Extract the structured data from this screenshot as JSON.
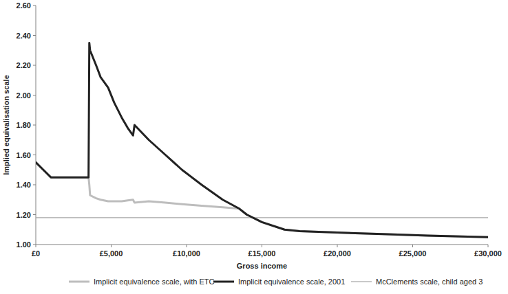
{
  "chart_data": {
    "type": "line",
    "x_label": "Gross income",
    "y_label": "Implied equivalisation scale",
    "x": [
      0,
      500,
      1000,
      2000,
      3500,
      3550,
      3600,
      4000,
      4300,
      4800,
      5200,
      5700,
      6100,
      6450,
      6550,
      7500,
      8600,
      9700,
      11000,
      12400,
      13500,
      14000,
      15000,
      16500,
      17500,
      20000,
      23000,
      26000,
      30000
    ],
    "xlim": [
      0,
      30000
    ],
    "xticks": [
      {
        "value": 0,
        "label": "£0"
      },
      {
        "value": 5000,
        "label": "£5,000"
      },
      {
        "value": 10000,
        "label": "£10,000"
      },
      {
        "value": 15000,
        "label": "£15,000"
      },
      {
        "value": 20000,
        "label": "£20,000"
      },
      {
        "value": 25000,
        "label": "£25,000"
      },
      {
        "value": 30000,
        "label": "£30,000"
      }
    ],
    "ylim": [
      1.0,
      2.6
    ],
    "yticks": [
      {
        "value": 1.0,
        "label": "1.00"
      },
      {
        "value": 1.2,
        "label": "1.20"
      },
      {
        "value": 1.4,
        "label": "1.40"
      },
      {
        "value": 1.6,
        "label": "1.60"
      },
      {
        "value": 1.8,
        "label": "1.80"
      },
      {
        "value": 2.0,
        "label": "2.00"
      },
      {
        "value": 2.2,
        "label": "2.20"
      },
      {
        "value": 2.4,
        "label": "2.40"
      },
      {
        "value": 2.6,
        "label": "2.60"
      }
    ],
    "grid": false,
    "legend": "bottom",
    "series": [
      {
        "name": "Implicit equivalence scale, with ETC",
        "color": "#bdbdbd",
        "values": [
          1.55,
          1.5,
          1.45,
          1.45,
          1.45,
          1.4,
          1.33,
          1.31,
          1.3,
          1.29,
          1.29,
          1.29,
          1.295,
          1.3,
          1.28,
          1.29,
          1.28,
          1.27,
          1.26,
          1.25,
          1.24,
          1.2,
          1.15,
          1.1,
          1.09,
          1.08,
          1.07,
          1.06,
          1.05
        ]
      },
      {
        "name": "Implicit equivalence scale, 2001",
        "color": "#222222",
        "values": [
          1.55,
          1.5,
          1.45,
          1.45,
          1.45,
          2.35,
          2.3,
          2.2,
          2.12,
          2.05,
          1.95,
          1.85,
          1.78,
          1.73,
          1.8,
          1.7,
          1.6,
          1.5,
          1.4,
          1.3,
          1.24,
          1.2,
          1.15,
          1.1,
          1.09,
          1.08,
          1.07,
          1.06,
          1.05
        ]
      },
      {
        "name": "McClements scale, child aged 3",
        "color": "#a6a6a6",
        "values": [
          1.18,
          1.18,
          1.18,
          1.18,
          1.18,
          1.18,
          1.18,
          1.18,
          1.18,
          1.18,
          1.18,
          1.18,
          1.18,
          1.18,
          1.18,
          1.18,
          1.18,
          1.18,
          1.18,
          1.18,
          1.18,
          1.18,
          1.18,
          1.18,
          1.18,
          1.18,
          1.18,
          1.18,
          1.18
        ]
      }
    ]
  }
}
